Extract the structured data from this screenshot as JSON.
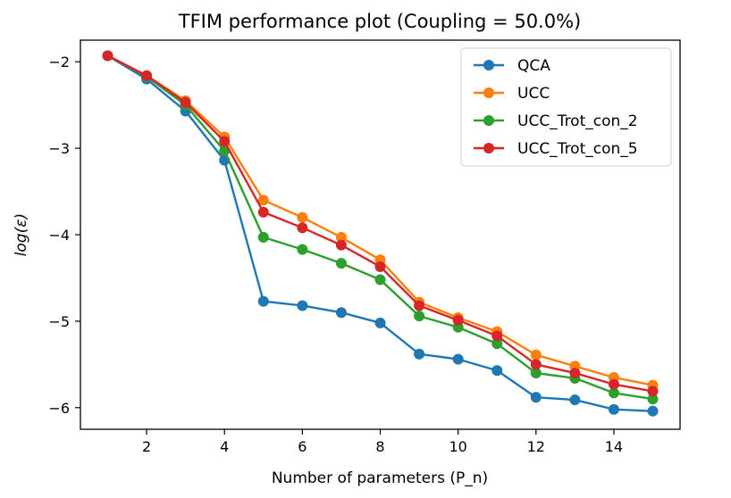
{
  "chart_data": {
    "type": "line",
    "title": "TFIM performance plot (Coupling = 50.0%)",
    "xlabel": "Number of parameters (P_n)",
    "ylabel": "log(ε)",
    "xlim": [
      0.3,
      15.7
    ],
    "ylim": [
      -6.25,
      -1.75
    ],
    "xticks": [
      2,
      4,
      6,
      8,
      10,
      12,
      14
    ],
    "yticks": [
      -2,
      -3,
      -4,
      -5,
      -6
    ],
    "ytick_labels": [
      "−2",
      "−3",
      "−4",
      "−5",
      "−6"
    ],
    "grid": false,
    "legend_position": "top-right",
    "x": [
      1,
      2,
      3,
      4,
      5,
      6,
      7,
      8,
      9,
      10,
      11,
      12,
      13,
      14,
      15
    ],
    "series": [
      {
        "name": "QCA",
        "color": "#1f77b4",
        "values": [
          -1.93,
          -2.2,
          -2.57,
          -3.14,
          -4.77,
          -4.82,
          -4.9,
          -5.02,
          -5.38,
          -5.44,
          -5.57,
          -5.88,
          -5.91,
          -6.02,
          -6.04
        ]
      },
      {
        "name": "UCC",
        "color": "#ff7f0e",
        "values": [
          -1.93,
          -2.16,
          -2.45,
          -2.87,
          -3.6,
          -3.8,
          -4.03,
          -4.29,
          -4.78,
          -4.96,
          -5.12,
          -5.39,
          -5.52,
          -5.65,
          -5.74
        ]
      },
      {
        "name": "UCC_Trot_con_2",
        "color": "#2ca02c",
        "values": [
          -1.93,
          -2.17,
          -2.5,
          -3.03,
          -4.03,
          -4.17,
          -4.33,
          -4.52,
          -4.94,
          -5.07,
          -5.26,
          -5.6,
          -5.66,
          -5.83,
          -5.9
        ]
      },
      {
        "name": "UCC_Trot_con_5",
        "color": "#d62728",
        "values": [
          -1.93,
          -2.16,
          -2.47,
          -2.92,
          -3.74,
          -3.92,
          -4.12,
          -4.37,
          -4.82,
          -4.99,
          -5.17,
          -5.5,
          -5.6,
          -5.73,
          -5.81
        ]
      }
    ]
  }
}
